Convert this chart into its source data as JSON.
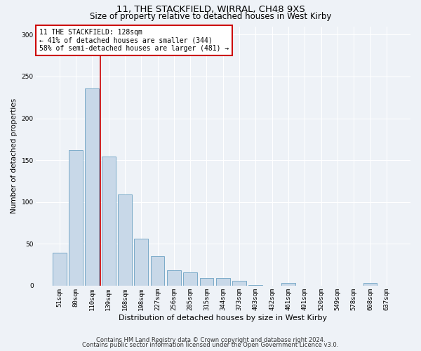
{
  "title1": "11, THE STACKFIELD, WIRRAL, CH48 9XS",
  "title2": "Size of property relative to detached houses in West Kirby",
  "xlabel": "Distribution of detached houses by size in West Kirby",
  "ylabel": "Number of detached properties",
  "categories": [
    "51sqm",
    "80sqm",
    "110sqm",
    "139sqm",
    "168sqm",
    "198sqm",
    "227sqm",
    "256sqm",
    "285sqm",
    "315sqm",
    "344sqm",
    "373sqm",
    "403sqm",
    "432sqm",
    "461sqm",
    "491sqm",
    "520sqm",
    "549sqm",
    "578sqm",
    "608sqm",
    "637sqm"
  ],
  "values": [
    39,
    162,
    236,
    154,
    109,
    56,
    35,
    18,
    16,
    9,
    9,
    6,
    1,
    0,
    3,
    0,
    0,
    0,
    0,
    3,
    0
  ],
  "bar_color": "#c8d8e8",
  "bar_edge_color": "#7aaac8",
  "vline_color": "#cc0000",
  "vline_x": 2.5,
  "annotation_text": "11 THE STACKFIELD: 128sqm\n← 41% of detached houses are smaller (344)\n58% of semi-detached houses are larger (481) →",
  "annotation_box_color": "#ffffff",
  "annotation_box_edge_color": "#cc0000",
  "ylim": [
    0,
    310
  ],
  "yticks": [
    0,
    50,
    100,
    150,
    200,
    250,
    300
  ],
  "footnote1": "Contains HM Land Registry data © Crown copyright and database right 2024.",
  "footnote2": "Contains public sector information licensed under the Open Government Licence v3.0.",
  "background_color": "#eef2f7",
  "grid_color": "#ffffff",
  "title1_fontsize": 9.5,
  "title2_fontsize": 8.5,
  "ylabel_fontsize": 7.5,
  "xlabel_fontsize": 8.0,
  "tick_fontsize": 6.5,
  "footnote_fontsize": 6.0,
  "ann_fontsize": 7.0
}
